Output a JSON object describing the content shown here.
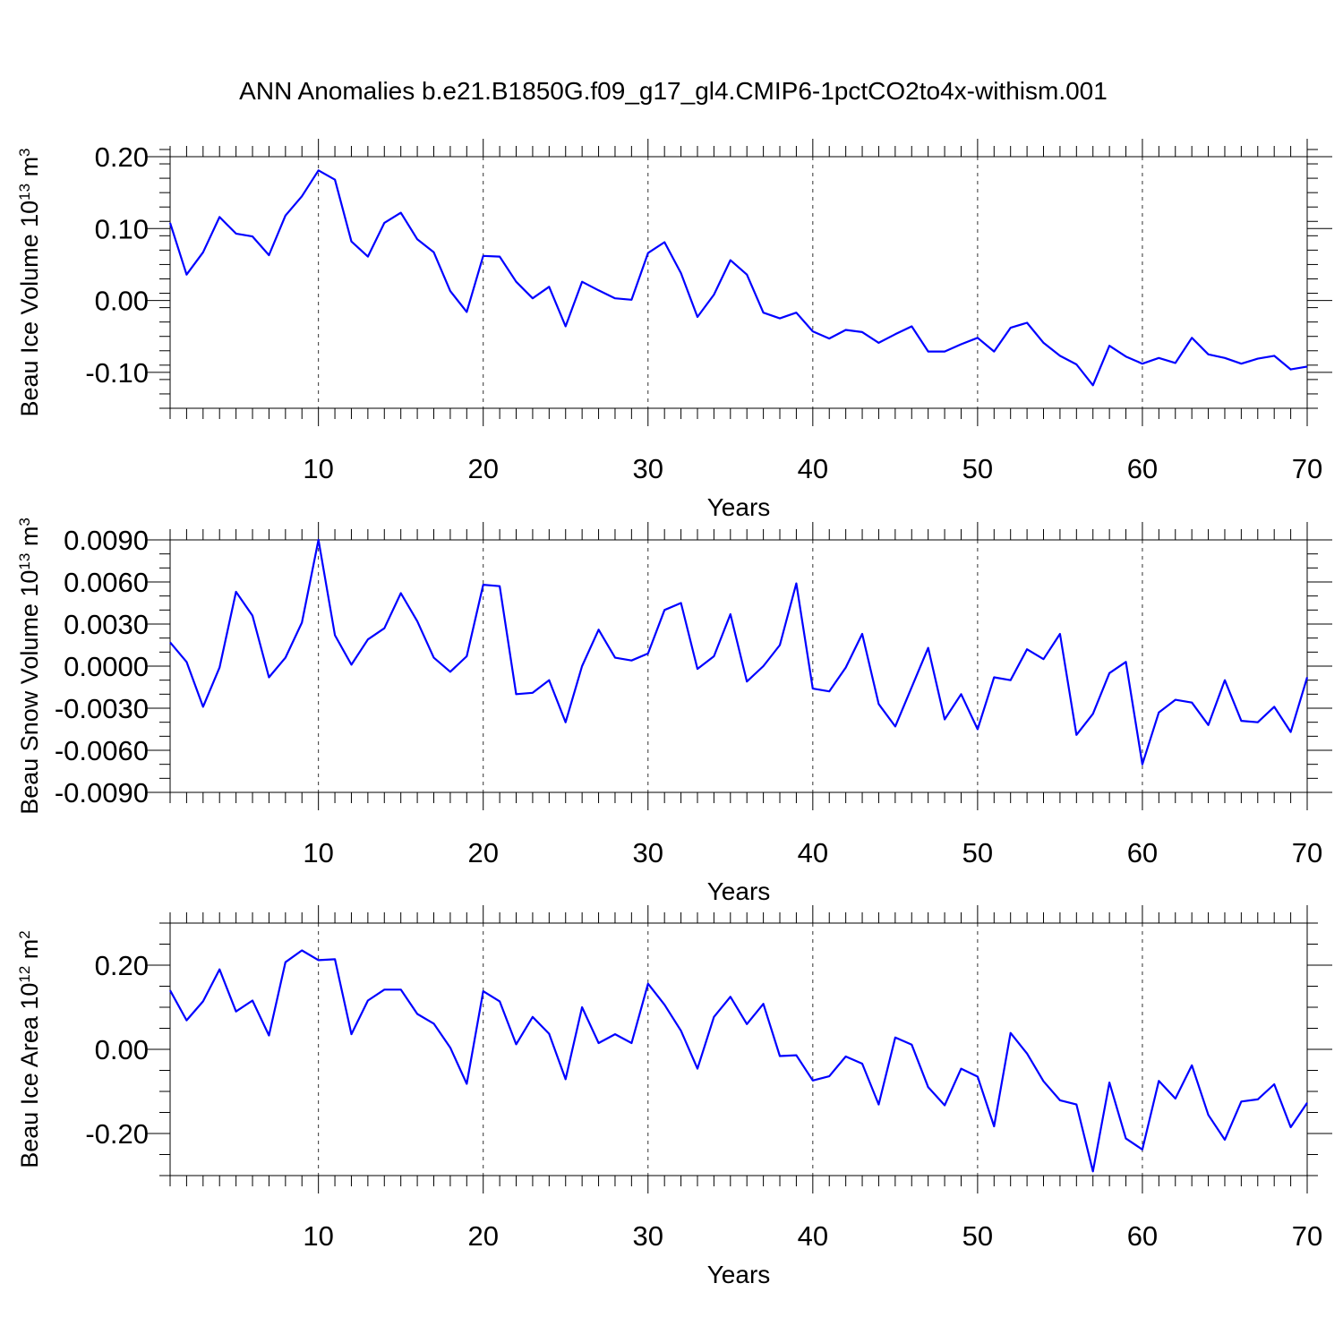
{
  "title": "ANN Anomalies b.e21.B1850G.f09_g17_gl4.CMIP6-1pctCO2to4x-withism.001",
  "line_color": "#0000ff",
  "chart_data": [
    {
      "id": "volume",
      "type": "line",
      "xlabel": "Years",
      "ylabel_main": "Beau Ice Volume 10",
      "ylabel_sup": "13",
      "ylabel_unit": " m",
      "ylabel_unit_sup": "3",
      "xlim": [
        1,
        70
      ],
      "ylim": [
        -0.15,
        0.2
      ],
      "xticks": [
        10,
        20,
        30,
        40,
        50,
        60,
        70
      ],
      "xtick_labels": [
        "10",
        "20",
        "30",
        "40",
        "50",
        "60",
        "70"
      ],
      "yticks": [
        0.2,
        0.1,
        0.0,
        -0.1
      ],
      "ytick_labels": [
        "0.20",
        "0.10",
        "0.00",
        "-0.10"
      ],
      "y_minor_step": 0.02,
      "grid_x": true,
      "x": [
        1,
        2,
        3,
        4,
        5,
        6,
        7,
        8,
        9,
        10,
        11,
        12,
        13,
        14,
        15,
        16,
        17,
        18,
        19,
        20,
        21,
        22,
        23,
        24,
        25,
        26,
        27,
        28,
        29,
        30,
        31,
        32,
        33,
        34,
        35,
        36,
        37,
        38,
        39,
        40,
        41,
        42,
        43,
        44,
        45,
        46,
        47,
        48,
        49,
        50,
        51,
        52,
        53,
        54,
        55,
        56,
        57,
        58,
        59,
        60,
        61,
        62,
        63,
        64,
        65,
        66,
        67,
        68,
        69,
        70
      ],
      "values": [
        0.108,
        0.036,
        0.067,
        0.116,
        0.093,
        0.089,
        0.063,
        0.118,
        0.145,
        0.181,
        0.168,
        0.082,
        0.061,
        0.108,
        0.122,
        0.085,
        0.067,
        0.013,
        -0.016,
        0.062,
        0.061,
        0.026,
        0.003,
        0.019,
        -0.036,
        0.026,
        0.014,
        0.003,
        0.001,
        0.066,
        0.081,
        0.038,
        -0.023,
        0.008,
        0.056,
        0.036,
        -0.017,
        -0.025,
        -0.017,
        -0.043,
        -0.053,
        -0.041,
        -0.044,
        -0.059,
        -0.047,
        -0.036,
        -0.071,
        -0.071,
        -0.061,
        -0.052,
        -0.071,
        -0.038,
        -0.031,
        -0.059,
        -0.077,
        -0.089,
        -0.118,
        -0.063,
        -0.078,
        -0.088,
        -0.08,
        -0.087,
        -0.052,
        -0.075,
        -0.08,
        -0.088,
        -0.081,
        -0.077,
        -0.096,
        -0.092
      ]
    },
    {
      "id": "snow",
      "type": "line",
      "xlabel": "Years",
      "ylabel_main": "Beau Snow Volume 10",
      "ylabel_sup": "13",
      "ylabel_unit": " m",
      "ylabel_unit_sup": "3",
      "xlim": [
        1,
        70
      ],
      "ylim": [
        -0.009,
        0.009
      ],
      "xticks": [
        10,
        20,
        30,
        40,
        50,
        60,
        70
      ],
      "xtick_labels": [
        "10",
        "20",
        "30",
        "40",
        "50",
        "60",
        "70"
      ],
      "yticks": [
        0.009,
        0.006,
        0.003,
        0.0,
        -0.003,
        -0.006,
        -0.009
      ],
      "ytick_labels": [
        "0.0090",
        "0.0060",
        "0.0030",
        "0.0000",
        "-0.0030",
        "-0.0060",
        "-0.0090"
      ],
      "y_minor_step": 0.001,
      "grid_x": true,
      "x": [
        1,
        2,
        3,
        4,
        5,
        6,
        7,
        8,
        9,
        10,
        11,
        12,
        13,
        14,
        15,
        16,
        17,
        18,
        19,
        20,
        21,
        22,
        23,
        24,
        25,
        26,
        27,
        28,
        29,
        30,
        31,
        32,
        33,
        34,
        35,
        36,
        37,
        38,
        39,
        40,
        41,
        42,
        43,
        44,
        45,
        46,
        47,
        48,
        49,
        50,
        51,
        52,
        53,
        54,
        55,
        56,
        57,
        58,
        59,
        60,
        61,
        62,
        63,
        64,
        65,
        66,
        67,
        68,
        69,
        70
      ],
      "values": [
        0.0017,
        0.0003,
        -0.0029,
        -0.0001,
        0.0053,
        0.0036,
        -0.0008,
        0.0006,
        0.0031,
        0.009,
        0.0022,
        0.0001,
        0.0019,
        0.0027,
        0.0052,
        0.0032,
        0.0006,
        -0.0004,
        0.0007,
        0.0058,
        0.0057,
        -0.002,
        -0.0019,
        -0.001,
        -0.004,
        0.0,
        0.0026,
        0.0006,
        0.0004,
        0.0009,
        0.004,
        0.0045,
        -0.0002,
        0.0007,
        0.0037,
        -0.0011,
        0.0,
        0.0015,
        0.0059,
        -0.0016,
        -0.0018,
        -0.0001,
        0.0023,
        -0.0027,
        -0.0043,
        -0.0015,
        0.0013,
        -0.0038,
        -0.002,
        -0.0045,
        -0.0008,
        -0.001,
        0.0012,
        0.0005,
        0.0023,
        -0.0049,
        -0.0034,
        -0.0005,
        0.0003,
        -0.007,
        -0.0033,
        -0.0024,
        -0.0026,
        -0.0042,
        -0.001,
        -0.0039,
        -0.004,
        -0.0029,
        -0.0047,
        -0.0008
      ]
    },
    {
      "id": "area",
      "type": "line",
      "xlabel": "Years",
      "ylabel_main": "Beau Ice Area 10",
      "ylabel_sup": "12",
      "ylabel_unit": " m",
      "ylabel_unit_sup": "2",
      "xlim": [
        1,
        70
      ],
      "ylim": [
        -0.3,
        0.3
      ],
      "xticks": [
        10,
        20,
        30,
        40,
        50,
        60,
        70
      ],
      "xtick_labels": [
        "10",
        "20",
        "30",
        "40",
        "50",
        "60",
        "70"
      ],
      "yticks": [
        0.2,
        0.0,
        -0.2
      ],
      "ytick_labels": [
        "0.20",
        "0.00",
        "-0.20"
      ],
      "y_minor_step": 0.05,
      "grid_x": true,
      "x": [
        1,
        2,
        3,
        4,
        5,
        6,
        7,
        8,
        9,
        10,
        11,
        12,
        13,
        14,
        15,
        16,
        17,
        18,
        19,
        20,
        21,
        22,
        23,
        24,
        25,
        26,
        27,
        28,
        29,
        30,
        31,
        32,
        33,
        34,
        35,
        36,
        37,
        38,
        39,
        40,
        41,
        42,
        43,
        44,
        45,
        46,
        47,
        48,
        49,
        50,
        51,
        52,
        53,
        54,
        55,
        56,
        57,
        58,
        59,
        60,
        61,
        62,
        63,
        64,
        65,
        66,
        67,
        68,
        69,
        70
      ],
      "values": [
        0.14,
        0.069,
        0.114,
        0.19,
        0.09,
        0.116,
        0.033,
        0.207,
        0.235,
        0.212,
        0.214,
        0.036,
        0.116,
        0.142,
        0.142,
        0.084,
        0.061,
        0.004,
        -0.082,
        0.138,
        0.114,
        0.012,
        0.077,
        0.037,
        -0.071,
        0.1,
        0.015,
        0.036,
        0.015,
        0.156,
        0.106,
        0.044,
        -0.046,
        0.077,
        0.125,
        0.06,
        0.108,
        -0.016,
        -0.014,
        -0.074,
        -0.064,
        -0.017,
        -0.034,
        -0.131,
        0.028,
        0.011,
        -0.09,
        -0.133,
        -0.046,
        -0.065,
        -0.183,
        0.039,
        -0.01,
        -0.076,
        -0.121,
        -0.131,
        -0.29,
        -0.079,
        -0.212,
        -0.238,
        -0.075,
        -0.117,
        -0.038,
        -0.156,
        -0.215,
        -0.124,
        -0.119,
        -0.083,
        -0.185,
        -0.127
      ]
    }
  ]
}
